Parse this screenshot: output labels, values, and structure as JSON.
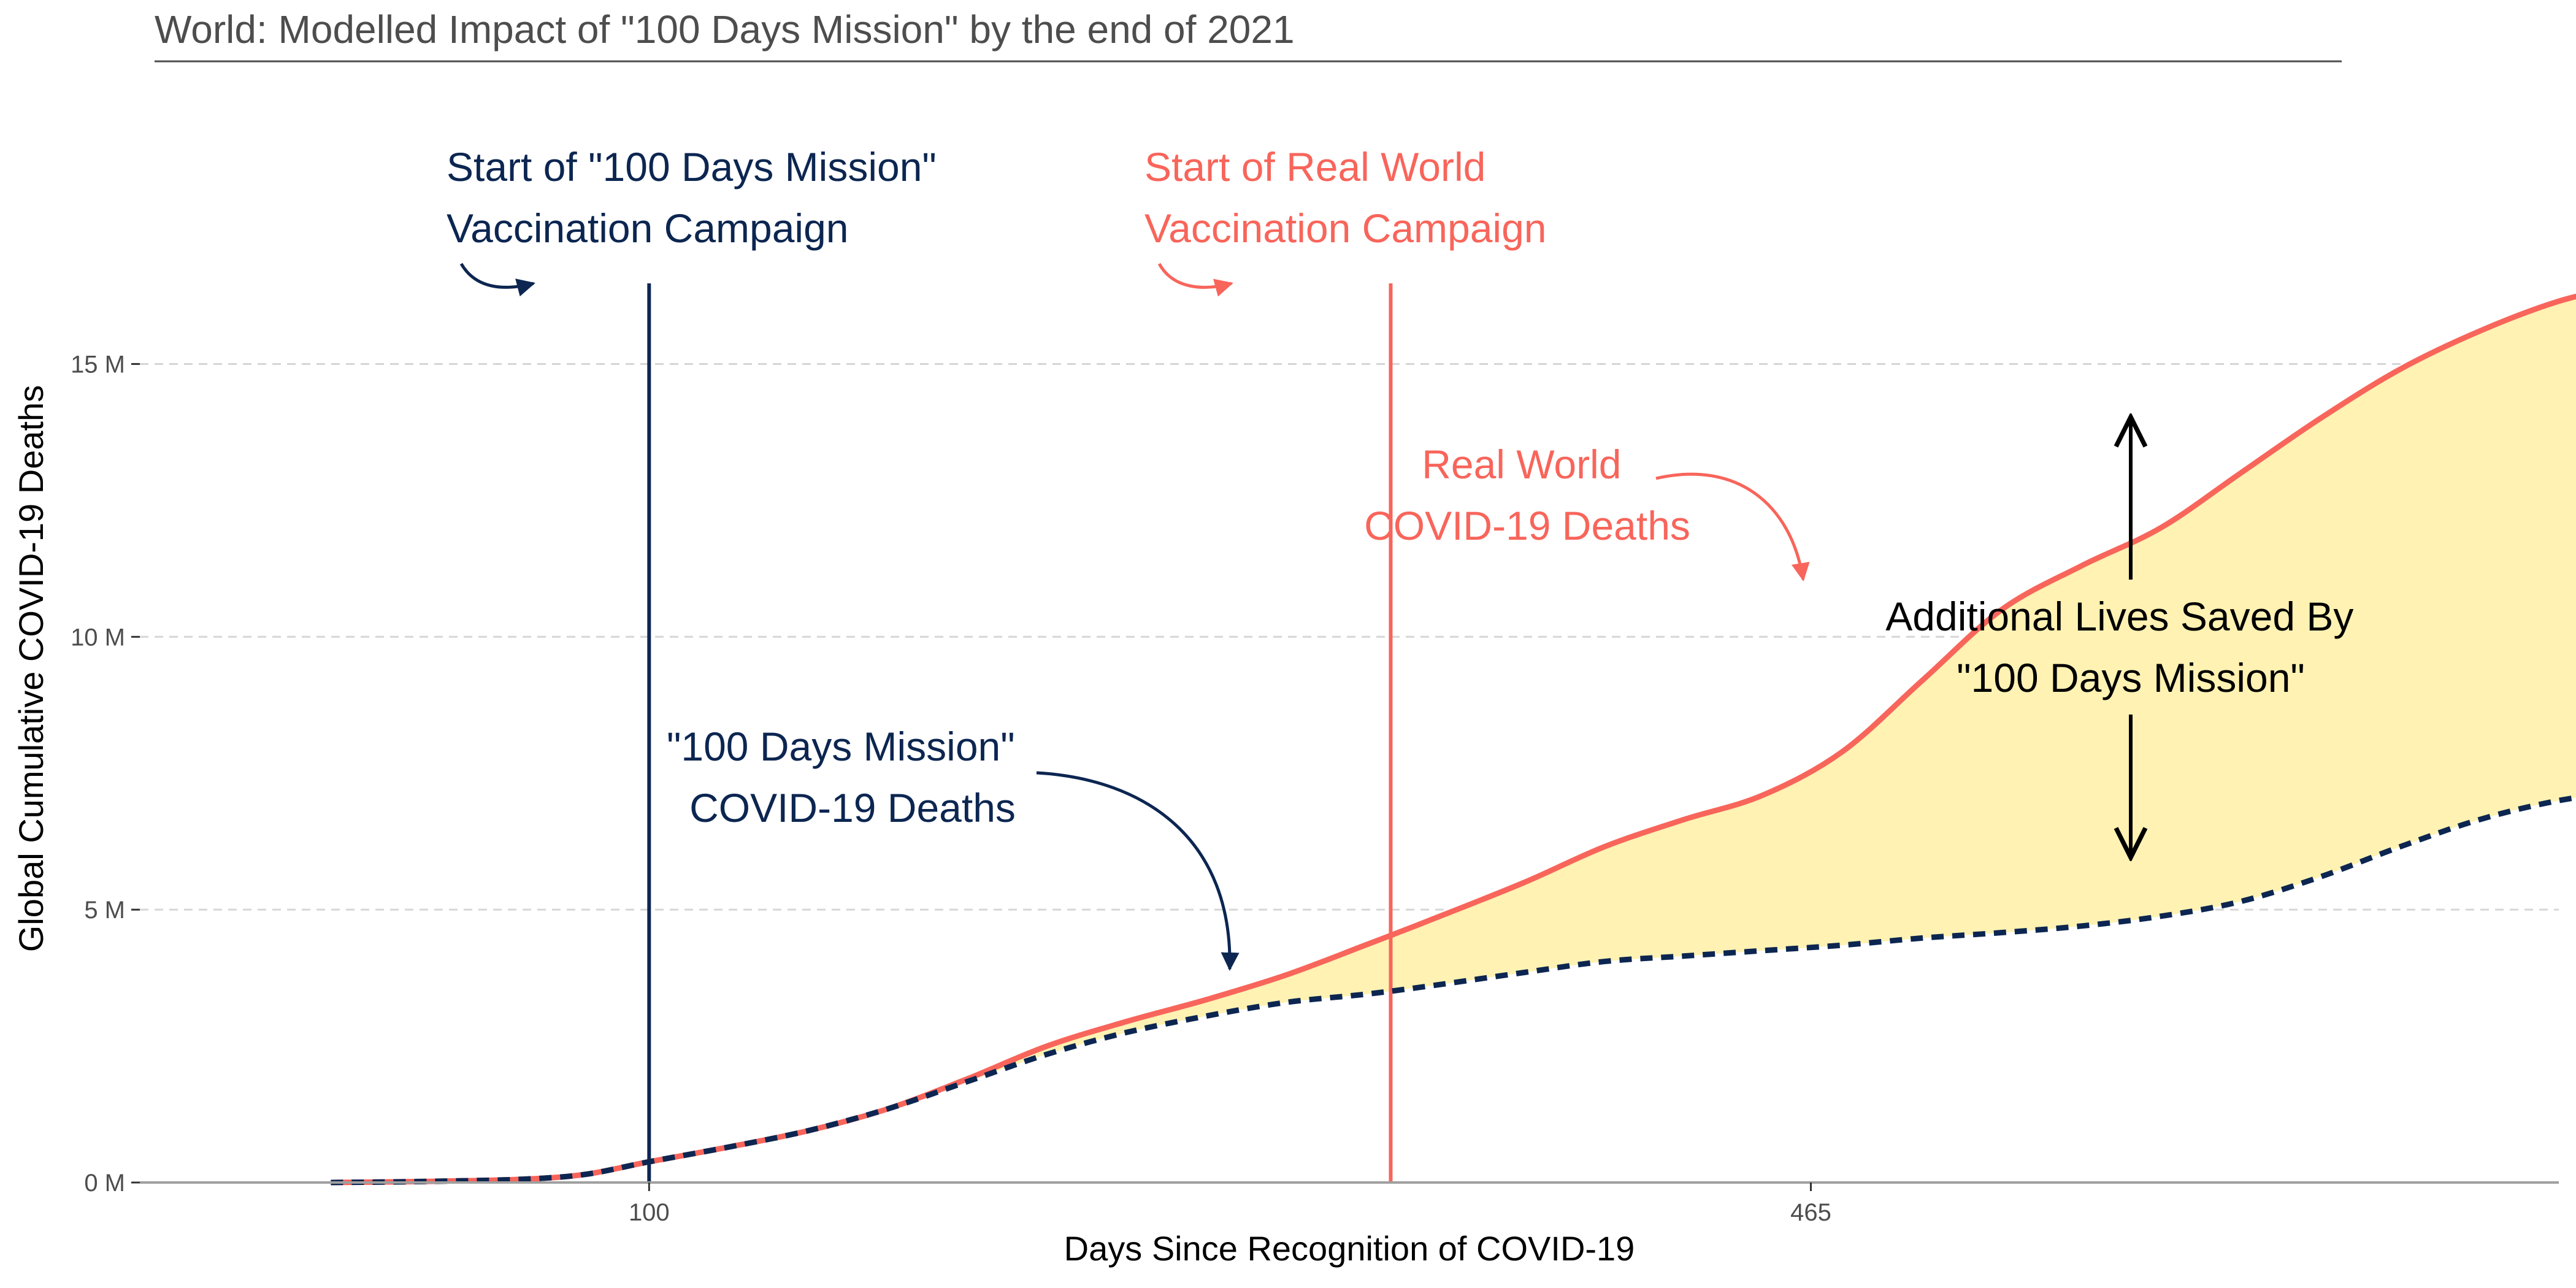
{
  "colors": {
    "real_world": "#F8655B",
    "mission": "#0C2651",
    "fill": "#FFF2B3",
    "grid": "#D6D6D6",
    "axis": "#A0A0A0",
    "black": "#000000"
  },
  "chart_data": {
    "type": "area",
    "title": "World: Modelled Impact of \"100 Days Mission\" by the end of 2021",
    "xlabel": "Days Since Recognition of COVID-19",
    "ylabel": "Global Cumulative COVID-19 Deaths",
    "xlim": [
      -60,
      700
    ],
    "ylim": [
      0,
      16500000
    ],
    "x_ticks": [
      {
        "value": 100,
        "label": "100"
      },
      {
        "value": 465,
        "label": "465"
      }
    ],
    "y_ticks": [
      {
        "value": 0,
        "label": "0 M"
      },
      {
        "value": 5000000,
        "label": "5 M"
      },
      {
        "value": 10000000,
        "label": "10 M"
      },
      {
        "value": 15000000,
        "label": "15 M"
      }
    ],
    "grid": "horizontal dashed",
    "series": [
      {
        "key": "real",
        "x": [
          0,
          30,
          60,
          80,
          100,
          125,
          150,
          175,
          200,
          225,
          250,
          275,
          300,
          325,
          345,
          375,
          400,
          425,
          450,
          475,
          500,
          525,
          550,
          575,
          600,
          625,
          650,
          675,
          700,
          725
        ],
        "y": [
          0,
          20000,
          60000,
          150000,
          380000,
          650000,
          950000,
          1350000,
          1900000,
          2500000,
          2950000,
          3350000,
          3800000,
          4350000,
          4800000,
          5500000,
          6150000,
          6650000,
          7100000,
          7900000,
          9200000,
          10500000,
          11300000,
          12000000,
          13000000,
          14000000,
          14900000,
          15600000,
          16150000,
          16500000
        ]
      },
      {
        "key": "mission",
        "x": [
          0,
          30,
          60,
          80,
          100,
          125,
          150,
          175,
          200,
          225,
          250,
          275,
          300,
          325,
          345,
          375,
          400,
          425,
          450,
          475,
          500,
          525,
          550,
          575,
          600,
          625,
          650,
          675,
          700,
          725
        ],
        "y": [
          0,
          20000,
          60000,
          150000,
          380000,
          650000,
          950000,
          1350000,
          1850000,
          2350000,
          2750000,
          3050000,
          3300000,
          3450000,
          3600000,
          3850000,
          4050000,
          4150000,
          4250000,
          4350000,
          4480000,
          4580000,
          4700000,
          4880000,
          5150000,
          5600000,
          6150000,
          6650000,
          7000000,
          7200000
        ]
      }
    ],
    "vlines": [
      {
        "key": "mission_start",
        "x": 100,
        "label_lines": [
          "Start of \"100 Days Mission\"",
          "Vaccination Campaign"
        ]
      },
      {
        "key": "real_start",
        "x": 333,
        "label_lines": [
          "Start of Real World",
          "Vaccination Campaign"
        ]
      }
    ],
    "annotations": {
      "real_deaths": [
        "Real World",
        "COVID-19 Deaths"
      ],
      "mission_deaths": [
        "\"100 Days Mission\"",
        "COVID-19 Deaths"
      ],
      "saved": [
        "Additional Lives Saved By",
        "\"100 Days Mission\""
      ]
    }
  }
}
